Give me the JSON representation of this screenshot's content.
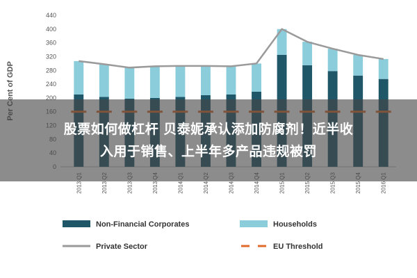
{
  "chart_data": {
    "type": "bar",
    "stacked": true,
    "ylabel": "Per Cent of GDP",
    "ylim": [
      0,
      440
    ],
    "yticks": [
      0,
      40,
      80,
      120,
      160,
      200,
      240,
      280,
      320,
      360,
      400,
      440
    ],
    "categories": [
      "2013 Q1",
      "2013 Q2",
      "2013 Q3",
      "2013 Q4",
      "2014 Q1",
      "2014 Q2",
      "2014 Q3",
      "2014 Q4",
      "2015 Q1",
      "2015 Q2",
      "2015 Q3",
      "2015 Q4",
      "2016 Q1"
    ],
    "series": [
      {
        "name": "Non-Financial Corporates",
        "kind": "bar",
        "color": "#1f5668",
        "values": [
          210,
          203,
          198,
          200,
          203,
          208,
          210,
          218,
          325,
          295,
          278,
          265,
          255
        ]
      },
      {
        "name": "Households",
        "kind": "bar",
        "color": "#8ccddc",
        "values": [
          97,
          95,
          90,
          92,
          90,
          85,
          82,
          82,
          75,
          68,
          65,
          60,
          58
        ]
      },
      {
        "name": "Private Sector",
        "kind": "line",
        "color": "#9a9a9a",
        "values": [
          307,
          298,
          288,
          292,
          293,
          293,
          292,
          300,
          400,
          363,
          343,
          325,
          313
        ]
      },
      {
        "name": "EU Threshold",
        "kind": "dashed-line",
        "color": "#e06a2c",
        "values": [
          160,
          160,
          160,
          160,
          160,
          160,
          160,
          160,
          160,
          160,
          160,
          160,
          160
        ]
      }
    ],
    "legend_position": "bottom",
    "grid": false
  },
  "overlay": {
    "line1": "股票如何做杠杆 贝泰妮承认添加防腐剂！近半收",
    "line2": "入用于销售、上半年多产品违规被罚"
  }
}
